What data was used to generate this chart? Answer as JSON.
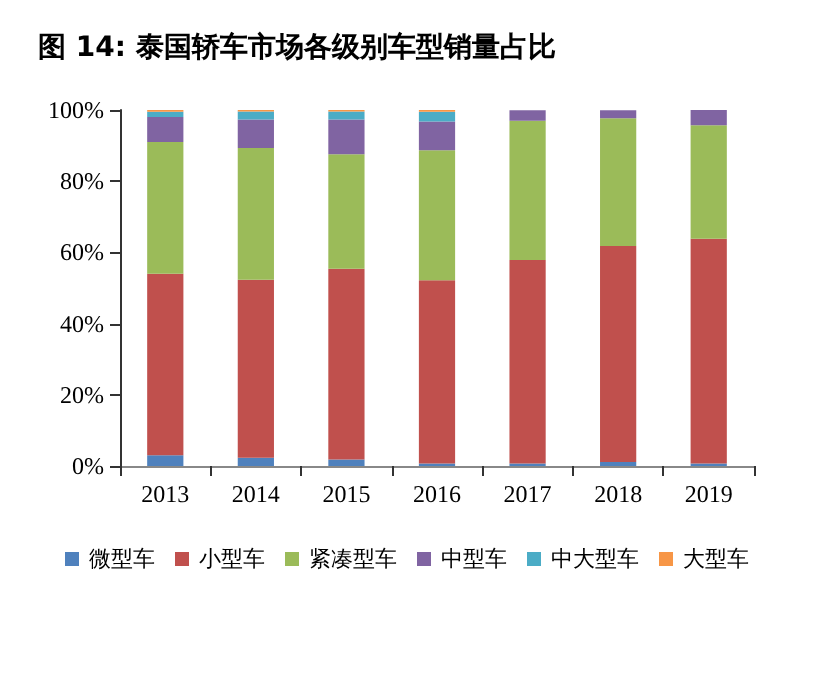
{
  "chart_data": {
    "type": "bar",
    "stacked": true,
    "title": "图 14: 泰国轿车市场各级别车型销量占比",
    "categories": [
      "2013",
      "2014",
      "2015",
      "2016",
      "2017",
      "2018",
      "2019"
    ],
    "series": [
      {
        "name": "微型车",
        "color": "#4f81bd",
        "values": [
          3,
          2.3,
          1.8,
          0.7,
          0.7,
          1.1,
          0.7
        ]
      },
      {
        "name": "小型车",
        "color": "#c0504d",
        "values": [
          51,
          50,
          53.6,
          51.5,
          57.2,
          60.7,
          63.1
        ]
      },
      {
        "name": "紧凑型车",
        "color": "#9bbb59",
        "values": [
          37,
          37,
          32.2,
          36.5,
          39.1,
          35.9,
          31.9
        ]
      },
      {
        "name": "中型车",
        "color": "#8064a2",
        "values": [
          7,
          8,
          9.7,
          8.1,
          2.9,
          2.2,
          4.3
        ]
      },
      {
        "name": "中大型车",
        "color": "#4bacc6",
        "values": [
          1.5,
          2.3,
          2.3,
          2.7,
          null,
          null,
          0.1
        ]
      },
      {
        "name": "大型车",
        "color": "#f79646",
        "values": [
          0.5,
          0.4,
          0.4,
          0.5,
          0,
          0,
          0.1
        ]
      }
    ],
    "ylim": [
      0,
      100
    ],
    "yticks": [
      {
        "value": 0,
        "label": "0%"
      },
      {
        "value": 20,
        "label": "20%"
      },
      {
        "value": 40,
        "label": "40%"
      },
      {
        "value": 60,
        "label": "60%"
      },
      {
        "value": 80,
        "label": "80%"
      },
      {
        "value": 100,
        "label": "100%"
      }
    ],
    "grid": false,
    "legend": "bottom"
  }
}
